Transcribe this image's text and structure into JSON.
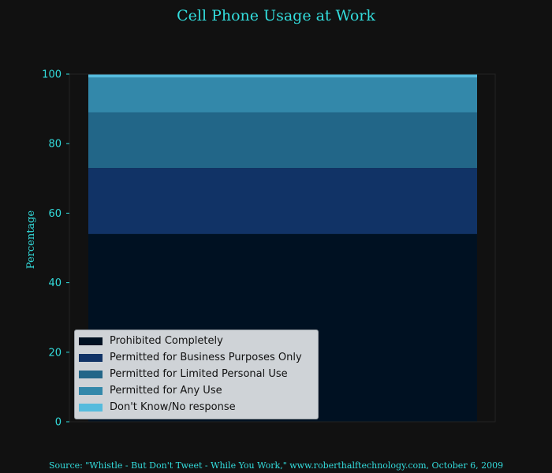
{
  "chart_data": {
    "type": "bar",
    "stacked": true,
    "title": "Cell Phone Usage at Work",
    "xlabel": "",
    "ylabel": "Percentage",
    "ylim": [
      0,
      100
    ],
    "yticks": [
      0,
      20,
      40,
      60,
      80,
      100
    ],
    "grid": false,
    "legend_position": "lower-left",
    "categories": [
      ""
    ],
    "series": [
      {
        "name": "Prohibited Completely",
        "values": [
          54
        ],
        "color": "#001122"
      },
      {
        "name": "Permitted for Business Purposes Only",
        "values": [
          19
        ],
        "color": "#113366"
      },
      {
        "name": "Permitted for Limited Personal Use",
        "values": [
          16
        ],
        "color": "#226688"
      },
      {
        "name": "Permitted for Any Use",
        "values": [
          10
        ],
        "color": "#3388aa"
      },
      {
        "name": "Don't Know/No response",
        "values": [
          1
        ],
        "color": "#55bbdd"
      }
    ],
    "source": "Source: \"Whistle - But Don't Tweet - While You Work,\" www.roberthalftechnology.com, October 6, 2009"
  },
  "colors": {
    "background": "#111111",
    "text": "#33dddd",
    "axis": "#222222",
    "legend_bg": "#cfd3d7"
  }
}
